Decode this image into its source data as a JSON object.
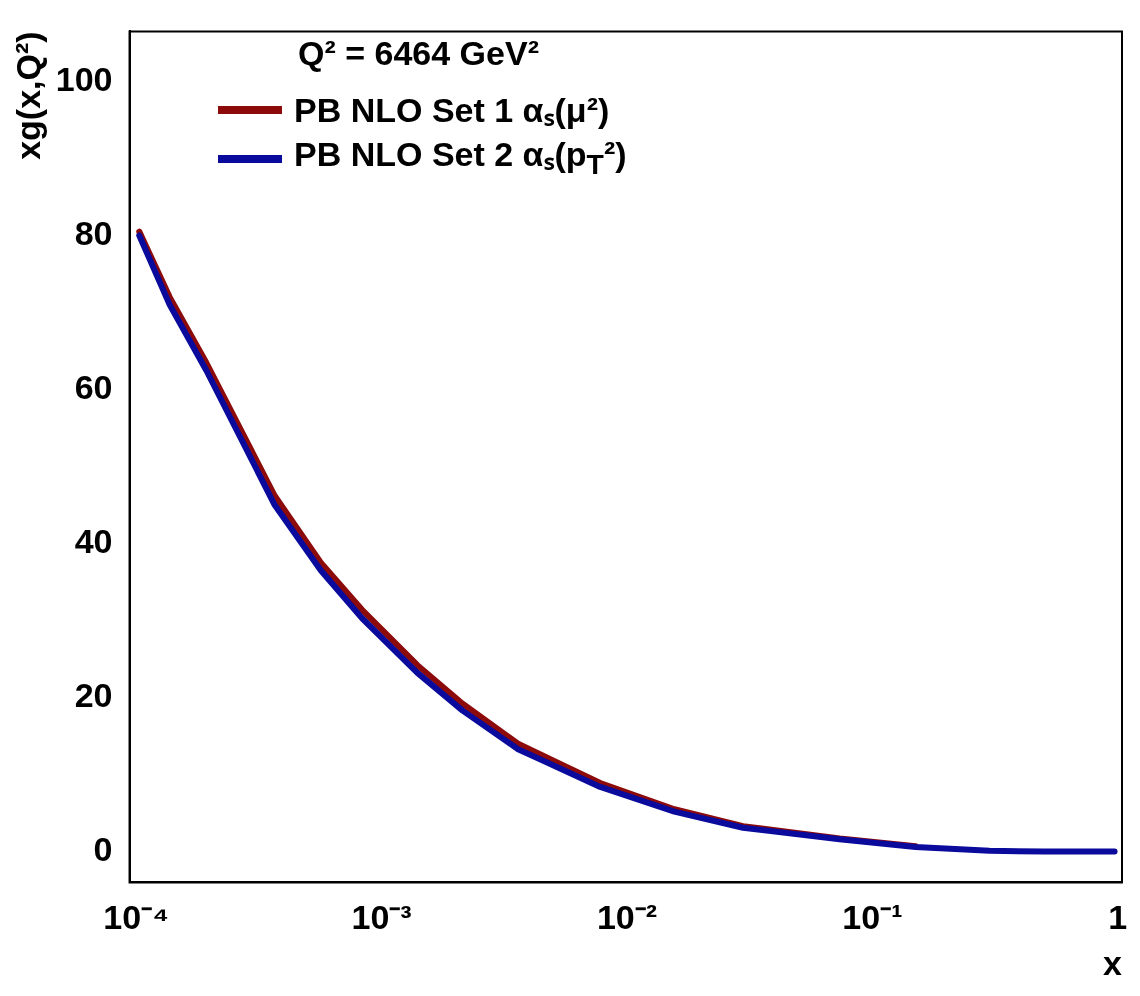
{
  "chart_data": {
    "type": "line",
    "title": "Q² = 6464 GeV²",
    "xlabel": "x",
    "ylabel": "xg(x,Q²)",
    "log": "x",
    "legend": "top left",
    "line_style": "solid",
    "marker": "none",
    "xlim": [
      9.4e-05,
      1.04
    ],
    "xticks": [
      {
        "value": 0.0001,
        "label": "10⁻⁴"
      },
      {
        "value": 0.001,
        "label": "10⁻³"
      },
      {
        "value": 0.01,
        "label": "10⁻²"
      },
      {
        "value": 0.1,
        "label": "10⁻¹"
      },
      1
    ],
    "ylim": [
      -4,
      106.5
    ],
    "yticks": [
      0,
      20,
      40,
      60,
      80,
      100
    ],
    "x": [
      0.000103,
      0.000137,
      0.000193,
      0.000367,
      0.000566,
      0.000833,
      0.0014,
      0.00214,
      0.0036,
      0.00778,
      0.0156,
      0.0297,
      0.0735,
      0.15,
      0.3,
      0.5,
      0.97
    ],
    "series": [
      {
        "name": "PB NLO Set 1 αₛ(μ²)",
        "color": "#8c0a0a",
        "values": [
          80.5,
          72,
          63.5,
          46.2,
          37.5,
          31.4,
          24.2,
          19.2,
          14.0,
          8.9,
          5.5,
          3.3,
          1.7,
          0.7,
          null,
          null,
          null
        ]
      },
      {
        "name": "PB NLO Set 2 αₛ(p$_{T}$²)",
        "color": "#0a0a9c",
        "values": [
          80,
          71,
          62.5,
          45,
          36.5,
          30.3,
          23.2,
          18.3,
          13.3,
          8.4,
          5.2,
          3.1,
          1.6,
          0.6,
          0.1,
          0,
          0
        ]
      }
    ]
  }
}
